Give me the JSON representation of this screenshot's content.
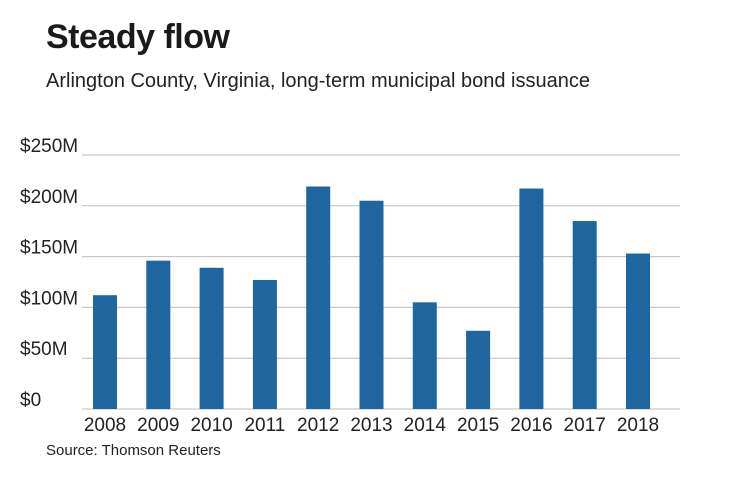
{
  "chart_data": {
    "type": "bar",
    "title": "Steady flow",
    "subtitle": "Arlington County, Virginia, long-term municipal bond issuance",
    "source": "Source: Thomson Reuters",
    "categories": [
      "2008",
      "2009",
      "2010",
      "2011",
      "2012",
      "2013",
      "2014",
      "2015",
      "2016",
      "2017",
      "2018"
    ],
    "values": [
      112,
      146,
      139,
      127,
      219,
      205,
      105,
      77,
      217,
      185,
      153
    ],
    "units": "millions of dollars",
    "ylim": [
      0,
      250
    ],
    "yticks": [
      0,
      50,
      100,
      150,
      200,
      250
    ],
    "ytick_labels": [
      "$0",
      "$50M",
      "$100M",
      "$150M",
      "$200M",
      "$250M"
    ],
    "xlabel": "",
    "ylabel": "",
    "grid": true,
    "bar_color": "#1f65a0",
    "grid_color": "#bdbdbd"
  }
}
